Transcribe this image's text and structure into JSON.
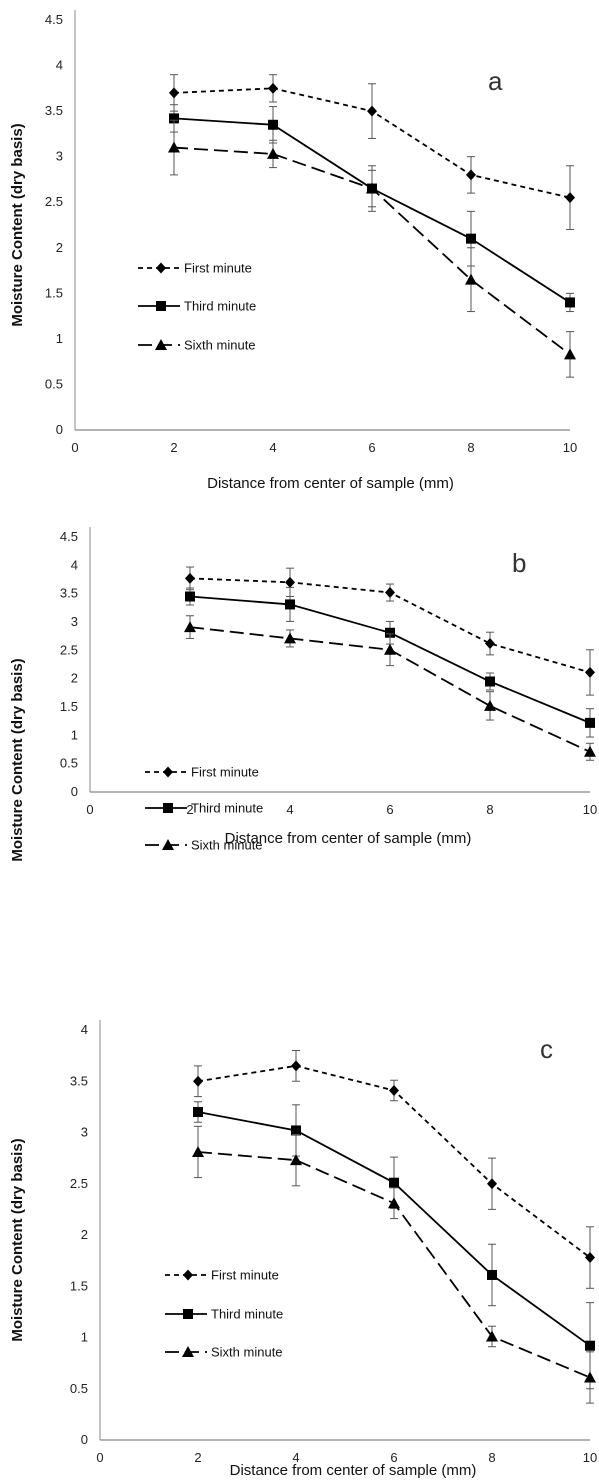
{
  "chart_data": [
    {
      "type": "line",
      "panel_label": "a",
      "xlabel": "Distance from center of sample (mm)",
      "ylabel": "Moisture Content (dry basis)",
      "xlim": [
        0,
        10
      ],
      "ylim": [
        0,
        4.5
      ],
      "xticks": [
        "0",
        "2",
        "4",
        "6",
        "8",
        "10"
      ],
      "yticks": [
        "0",
        "0.5",
        "1",
        "1.5",
        "2",
        "2.5",
        "3",
        "3.5",
        "4",
        "4.5"
      ],
      "legend_position": "left-center",
      "grid": false,
      "x": [
        2,
        4,
        6,
        8,
        10
      ],
      "series": [
        {
          "name": "First minute",
          "marker": "diamond",
          "dash": "short",
          "values": [
            3.7,
            3.75,
            3.5,
            2.8,
            2.55
          ],
          "errors": [
            0.2,
            0.15,
            0.3,
            0.2,
            0.35
          ]
        },
        {
          "name": "Third minute",
          "marker": "square",
          "dash": "solid",
          "values": [
            3.42,
            3.35,
            2.65,
            2.1,
            1.4
          ],
          "errors": [
            0.15,
            0.2,
            0.2,
            0.3,
            0.1
          ]
        },
        {
          "name": "Sixth minute",
          "marker": "triangle",
          "dash": "long",
          "values": [
            3.1,
            3.03,
            2.65,
            1.65,
            0.83
          ],
          "errors": [
            0.3,
            0.15,
            0.25,
            0.35,
            0.25
          ]
        }
      ]
    },
    {
      "type": "line",
      "panel_label": "b",
      "xlabel": "Distance from center of sample (mm)",
      "ylabel": "Moisture Content (dry basis)",
      "xlim": [
        0,
        10
      ],
      "ylim": [
        0,
        4.5
      ],
      "xticks": [
        "0",
        "2",
        "4",
        "6",
        "8",
        "10"
      ],
      "yticks": [
        "0",
        "0.5",
        "1",
        "1.5",
        "2",
        "2.5",
        "3",
        "3.5",
        "4",
        "4.5"
      ],
      "legend_position": "left-center",
      "grid": false,
      "x": [
        2,
        4,
        6,
        8,
        10
      ],
      "series": [
        {
          "name": "First minute",
          "marker": "diamond",
          "dash": "short",
          "values": [
            3.77,
            3.7,
            3.52,
            2.62,
            2.11
          ],
          "errors": [
            0.2,
            0.25,
            0.15,
            0.2,
            0.4
          ]
        },
        {
          "name": "Third minute",
          "marker": "square",
          "dash": "solid",
          "values": [
            3.45,
            3.31,
            2.81,
            1.95,
            1.22
          ],
          "errors": [
            0.15,
            0.3,
            0.2,
            0.15,
            0.25
          ]
        },
        {
          "name": "Sixth minute",
          "marker": "triangle",
          "dash": "long",
          "values": [
            2.91,
            2.71,
            2.51,
            1.52,
            0.71
          ],
          "errors": [
            0.2,
            0.15,
            0.28,
            0.25,
            0.15
          ]
        }
      ]
    },
    {
      "type": "line",
      "panel_label": "c",
      "xlabel": "Distance from center of sample (mm)",
      "ylabel": "Moisture Content (dry basis)",
      "xlim": [
        0,
        10
      ],
      "ylim": [
        0,
        4
      ],
      "xticks": [
        "0",
        "2",
        "4",
        "6",
        "8",
        "10"
      ],
      "yticks": [
        "0",
        "0.5",
        "1",
        "1.5",
        "2",
        "2.5",
        "3",
        "3.5",
        "4"
      ],
      "legend_position": "left-center",
      "grid": false,
      "x": [
        2,
        4,
        6,
        8,
        10
      ],
      "series": [
        {
          "name": "First minute",
          "marker": "diamond",
          "dash": "short",
          "values": [
            3.5,
            3.65,
            3.41,
            2.5,
            1.78
          ],
          "errors": [
            0.15,
            0.15,
            0.1,
            0.25,
            0.3
          ]
        },
        {
          "name": "Third minute",
          "marker": "square",
          "dash": "solid",
          "values": [
            3.2,
            3.02,
            2.51,
            1.61,
            0.92
          ],
          "errors": [
            0.1,
            0.25,
            0.25,
            0.3,
            0.42
          ]
        },
        {
          "name": "Sixth minute",
          "marker": "triangle",
          "dash": "long",
          "values": [
            2.81,
            2.73,
            2.31,
            1.01,
            0.61
          ],
          "errors": [
            0.25,
            0.25,
            0.15,
            0.1,
            0.25
          ]
        }
      ]
    }
  ]
}
